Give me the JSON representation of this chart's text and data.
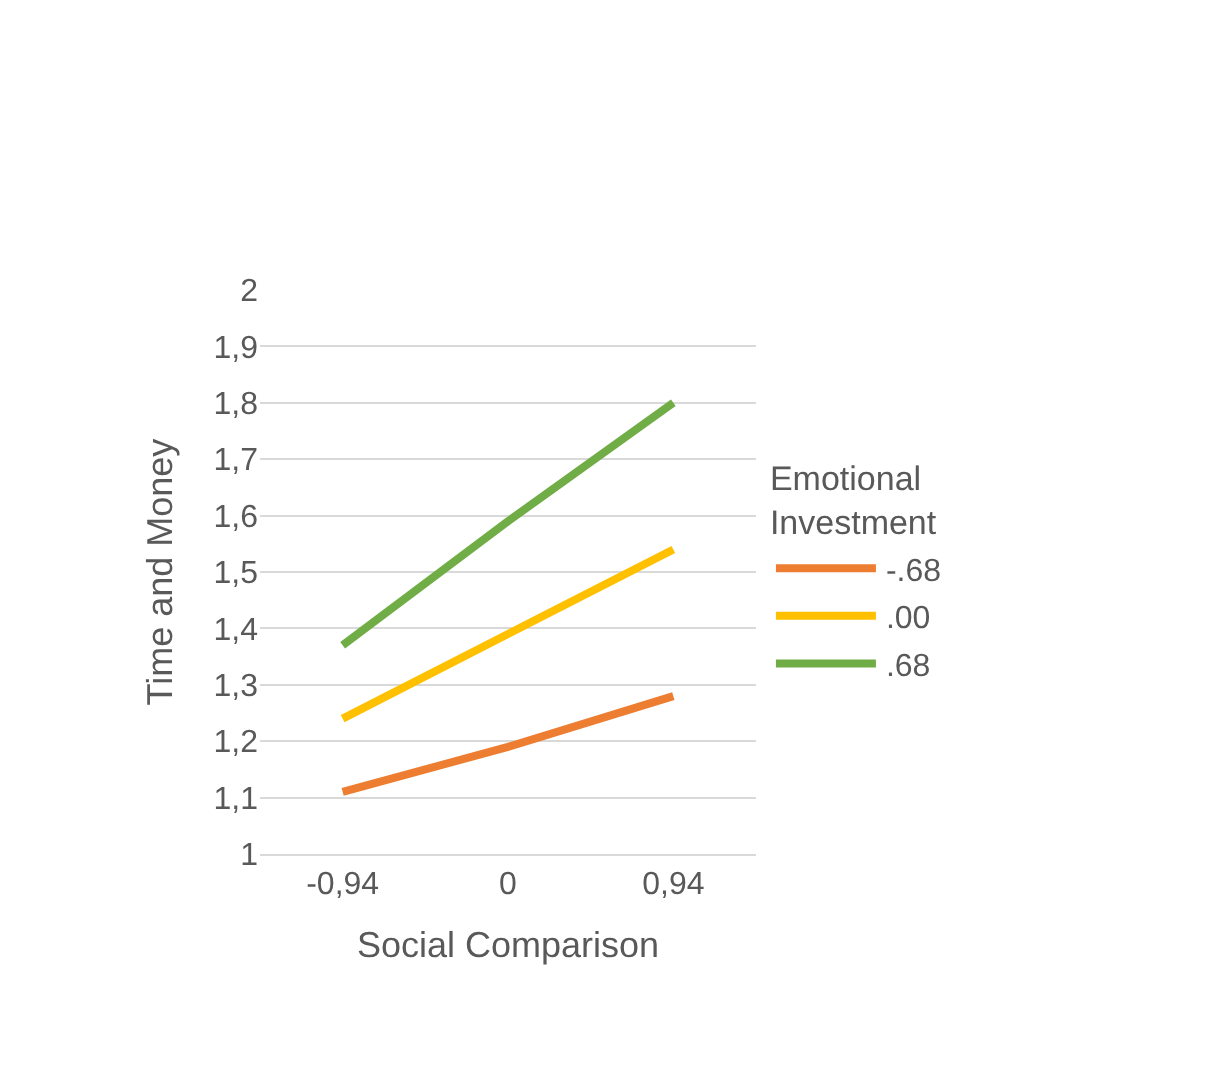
{
  "chart_data": {
    "type": "line",
    "xlabel": "Social Comparison",
    "ylabel": "Time and Money",
    "legend_title": "Emotional Investment",
    "categories": [
      "-0,94",
      "0",
      "0,94"
    ],
    "series": [
      {
        "name": "-.68",
        "color": "#ed7d31",
        "values": [
          1.11,
          1.19,
          1.28
        ]
      },
      {
        "name": ".00",
        "color": "#ffc000",
        "values": [
          1.24,
          1.39,
          1.54
        ]
      },
      {
        "name": ".68",
        "color": "#70ad47",
        "values": [
          1.37,
          1.59,
          1.8
        ]
      }
    ],
    "ylim": [
      1,
      2
    ],
    "yticks": [
      {
        "value": 1,
        "label": "1"
      },
      {
        "value": 1.1,
        "label": "1,1"
      },
      {
        "value": 1.2,
        "label": "1,2"
      },
      {
        "value": 1.3,
        "label": "1,3"
      },
      {
        "value": 1.4,
        "label": "1,4"
      },
      {
        "value": 1.5,
        "label": "1,5"
      },
      {
        "value": 1.6,
        "label": "1,6"
      },
      {
        "value": 1.7,
        "label": "1,7"
      },
      {
        "value": 1.8,
        "label": "1,8"
      },
      {
        "value": 1.9,
        "label": "1,9"
      },
      {
        "value": 2,
        "label": "2"
      }
    ],
    "grid": "y",
    "legend": "right",
    "marker": "none",
    "line_style": "solid"
  }
}
